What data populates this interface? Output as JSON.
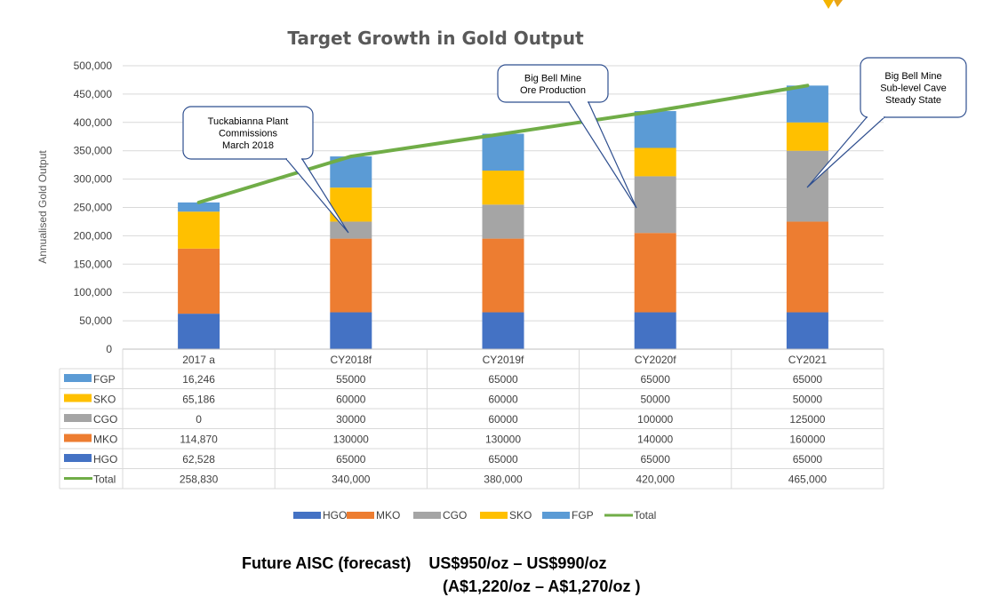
{
  "chart_data": {
    "type": "bar",
    "stacked": true,
    "title": "Target Growth in Gold Output",
    "ylabel": "Annualised Gold Output",
    "xlabel": "",
    "ylim": [
      0,
      500000
    ],
    "yticks": [
      "0",
      "50,000",
      "100,000",
      "150,000",
      "200,000",
      "250,000",
      "300,000",
      "350,000",
      "400,000",
      "450,000",
      "500,000"
    ],
    "grid": true,
    "legend": "bottom",
    "categories": [
      "2017 a",
      "CY2018f",
      "CY2019f",
      "CY2020f",
      "CY2021"
    ],
    "series": [
      {
        "name": "HGO",
        "color": "#4472C4",
        "values": [
          62528,
          65000,
          65000,
          65000,
          65000
        ],
        "labels": [
          "62,528",
          "65000",
          "65000",
          "65000",
          "65000"
        ]
      },
      {
        "name": "MKO",
        "color": "#ED7D31",
        "values": [
          114870,
          130000,
          130000,
          140000,
          160000
        ],
        "labels": [
          "114,870",
          "130000",
          "130000",
          "140000",
          "160000"
        ]
      },
      {
        "name": "CGO",
        "color": "#A5A5A5",
        "values": [
          0,
          30000,
          60000,
          100000,
          125000
        ],
        "labels": [
          "0",
          "30000",
          "60000",
          "100000",
          "125000"
        ]
      },
      {
        "name": "SKO",
        "color": "#FFC000",
        "values": [
          65186,
          60000,
          60000,
          50000,
          50000
        ],
        "labels": [
          "65,186",
          "60000",
          "60000",
          "50000",
          "50000"
        ]
      },
      {
        "name": "FGP",
        "color": "#5B9BD5",
        "values": [
          16246,
          55000,
          65000,
          65000,
          65000
        ],
        "labels": [
          "16,246",
          "55000",
          "65000",
          "65000",
          "65000"
        ]
      }
    ],
    "total": {
      "name": "Total",
      "color": "#70AD47",
      "values": [
        258830,
        340000,
        380000,
        420000,
        465000
      ],
      "labels": [
        "258,830",
        "340,000",
        "380,000",
        "420,000",
        "465,000"
      ]
    },
    "table_order": [
      "FGP",
      "SKO",
      "CGO",
      "MKO",
      "HGO",
      "Total"
    ],
    "annotations": [
      {
        "lines": [
          "Tuckabianna Plant",
          "Commissions",
          "March 2018"
        ]
      },
      {
        "lines": [
          "Big Bell Mine",
          "Ore Production"
        ]
      },
      {
        "lines": [
          "Big Bell Mine",
          "Sub-level Cave",
          "Steady State"
        ]
      }
    ]
  },
  "footer": {
    "line1": "Future AISC (forecast)    US$950/oz – US$990/oz",
    "line2": "(A$1,220/oz – A$1,270/oz )"
  },
  "logo_icon": "company-logo-icon"
}
